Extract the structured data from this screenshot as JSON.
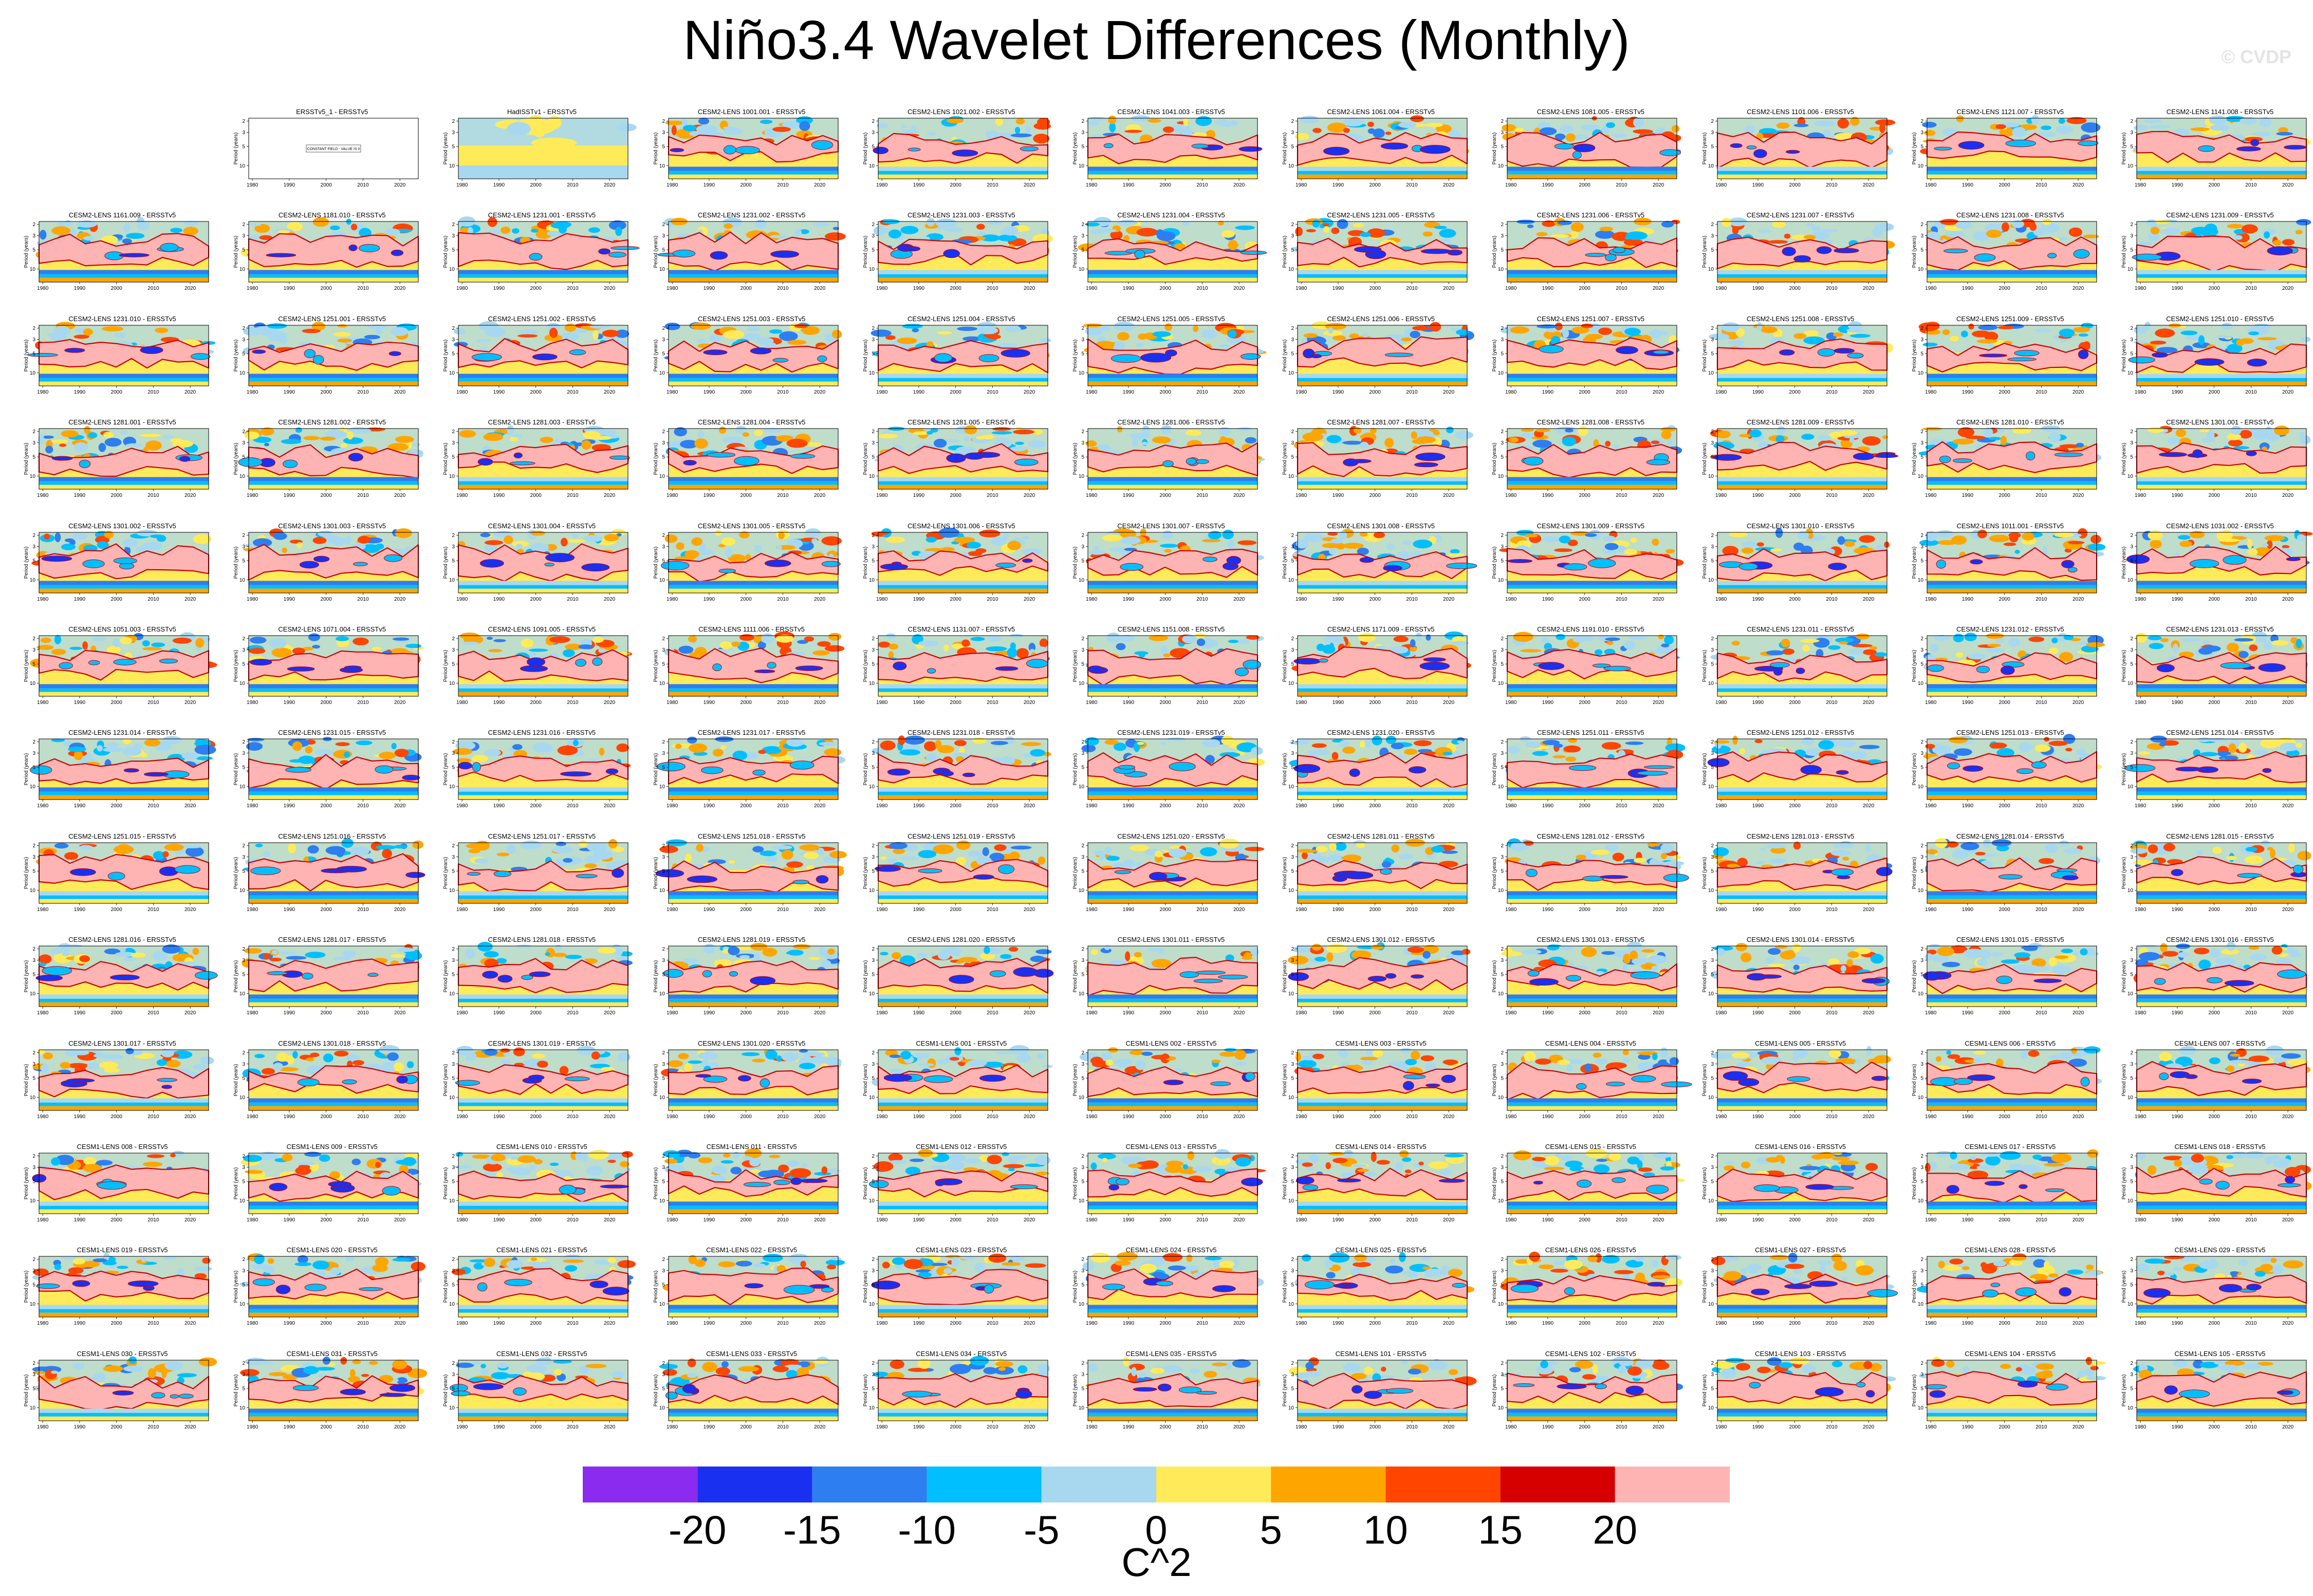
{
  "title": "Niño3.4 Wavelet Differences (Monthly)",
  "watermark": "© CVDP",
  "colors": {
    "levels": [
      "#8b2bf0",
      "#1a30f0",
      "#2d7ef0",
      "#00bfff",
      "#a8d8f0",
      "#ffeb5a",
      "#ffa500",
      "#ff4500",
      "#d70000",
      "#ffb4b4"
    ],
    "contour": "#cc0000",
    "background": "#ffffff"
  },
  "chart_data": {
    "type": "heatmap",
    "layout": "grid of wavelet power difference panels, 11 columns x 13 rows, first slot empty",
    "xlabel": "",
    "ylabel": "Period (years)",
    "x_ticks": [
      "1980",
      "1990",
      "2000",
      "2010",
      "2020"
    ],
    "x_range": [
      1979,
      2025
    ],
    "y_ticks": [
      "2",
      "3",
      "5",
      "10"
    ],
    "y_scale": "log, inverted",
    "colorbar": {
      "ticks": [
        "-20",
        "-15",
        "-10",
        "-5",
        "0",
        "5",
        "10",
        "15",
        "20"
      ],
      "levels": [
        -20,
        -15,
        -10,
        -5,
        0,
        5,
        10,
        15,
        20
      ],
      "units": "C^2",
      "placement": "bottom"
    },
    "constant_field_label": "CONSTANT FIELD - VALUE IS 0",
    "panels": [
      "ERSSTv5_1 - ERSSTv5",
      "HadISSTv1 - ERSSTv5",
      "CESM2-LENS 1001.001 - ERSSTv5",
      "CESM2-LENS 1021.002 - ERSSTv5",
      "CESM2-LENS 1041.003 - ERSSTv5",
      "CESM2-LENS 1061.004 - ERSSTv5",
      "CESM2-LENS 1081.005 - ERSSTv5",
      "CESM2-LENS 1101.006 - ERSSTv5",
      "CESM2-LENS 1121.007 - ERSSTv5",
      "CESM2-LENS 1141.008 - ERSSTv5",
      "CESM2-LENS 1161.009 - ERSSTv5",
      "CESM2-LENS 1181.010 - ERSSTv5",
      "CESM2-LENS 1231.001 - ERSSTv5",
      "CESM2-LENS 1231.002 - ERSSTv5",
      "CESM2-LENS 1231.003 - ERSSTv5",
      "CESM2-LENS 1231.004 - ERSSTv5",
      "CESM2-LENS 1231.005 - ERSSTv5",
      "CESM2-LENS 1231.006 - ERSSTv5",
      "CESM2-LENS 1231.007 - ERSSTv5",
      "CESM2-LENS 1231.008 - ERSSTv5",
      "CESM2-LENS 1231.009 - ERSSTv5",
      "CESM2-LENS 1231.010 - ERSSTv5",
      "CESM2-LENS 1251.001 - ERSSTv5",
      "CESM2-LENS 1251.002 - ERSSTv5",
      "CESM2-LENS 1251.003 - ERSSTv5",
      "CESM2-LENS 1251.004 - ERSSTv5",
      "CESM2-LENS 1251.005 - ERSSTv5",
      "CESM2-LENS 1251.006 - ERSSTv5",
      "CESM2-LENS 1251.007 - ERSSTv5",
      "CESM2-LENS 1251.008 - ERSSTv5",
      "CESM2-LENS 1251.009 - ERSSTv5",
      "CESM2-LENS 1251.010 - ERSSTv5",
      "CESM2-LENS 1281.001 - ERSSTv5",
      "CESM2-LENS 1281.002 - ERSSTv5",
      "CESM2-LENS 1281.003 - ERSSTv5",
      "CESM2-LENS 1281.004 - ERSSTv5",
      "CESM2-LENS 1281.005 - ERSSTv5",
      "CESM2-LENS 1281.006 - ERSSTv5",
      "CESM2-LENS 1281.007 - ERSSTv5",
      "CESM2-LENS 1281.008 - ERSSTv5",
      "CESM2-LENS 1281.009 - ERSSTv5",
      "CESM2-LENS 1281.010 - ERSSTv5",
      "CESM2-LENS 1301.001 - ERSSTv5",
      "CESM2-LENS 1301.002 - ERSSTv5",
      "CESM2-LENS 1301.003 - ERSSTv5",
      "CESM2-LENS 1301.004 - ERSSTv5",
      "CESM2-LENS 1301.005 - ERSSTv5",
      "CESM2-LENS 1301.006 - ERSSTv5",
      "CESM2-LENS 1301.007 - ERSSTv5",
      "CESM2-LENS 1301.008 - ERSSTv5",
      "CESM2-LENS 1301.009 - ERSSTv5",
      "CESM2-LENS 1301.010 - ERSSTv5",
      "CESM2-LENS 1011.001 - ERSSTv5",
      "CESM2-LENS 1031.002 - ERSSTv5",
      "CESM2-LENS 1051.003 - ERSSTv5",
      "CESM2-LENS 1071.004 - ERSSTv5",
      "CESM2-LENS 1091.005 - ERSSTv5",
      "CESM2-LENS 1111.006 - ERSSTv5",
      "CESM2-LENS 1131.007 - ERSSTv5",
      "CESM2-LENS 1151.008 - ERSSTv5",
      "CESM2-LENS 1171.009 - ERSSTv5",
      "CESM2-LENS 1191.010 - ERSSTv5",
      "CESM2-LENS 1231.011 - ERSSTv5",
      "CESM2-LENS 1231.012 - ERSSTv5",
      "CESM2-LENS 1231.013 - ERSSTv5",
      "CESM2-LENS 1231.014 - ERSSTv5",
      "CESM2-LENS 1231.015 - ERSSTv5",
      "CESM2-LENS 1231.016 - ERSSTv5",
      "CESM2-LENS 1231.017 - ERSSTv5",
      "CESM2-LENS 1231.018 - ERSSTv5",
      "CESM2-LENS 1231.019 - ERSSTv5",
      "CESM2-LENS 1231.020 - ERSSTv5",
      "CESM2-LENS 1251.011 - ERSSTv5",
      "CESM2-LENS 1251.012 - ERSSTv5",
      "CESM2-LENS 1251.013 - ERSSTv5",
      "CESM2-LENS 1251.014 - ERSSTv5",
      "CESM2-LENS 1251.015 - ERSSTv5",
      "CESM2-LENS 1251.016 - ERSSTv5",
      "CESM2-LENS 1251.017 - ERSSTv5",
      "CESM2-LENS 1251.018 - ERSSTv5",
      "CESM2-LENS 1251.019 - ERSSTv5",
      "CESM2-LENS 1251.020 - ERSSTv5",
      "CESM2-LENS 1281.011 - ERSSTv5",
      "CESM2-LENS 1281.012 - ERSSTv5",
      "CESM2-LENS 1281.013 - ERSSTv5",
      "CESM2-LENS 1281.014 - ERSSTv5",
      "CESM2-LENS 1281.015 - ERSSTv5",
      "CESM2-LENS 1281.016 - ERSSTv5",
      "CESM2-LENS 1281.017 - ERSSTv5",
      "CESM2-LENS 1281.018 - ERSSTv5",
      "CESM2-LENS 1281.019 - ERSSTv5",
      "CESM2-LENS 1281.020 - ERSSTv5",
      "CESM2-LENS 1301.011 - ERSSTv5",
      "CESM2-LENS 1301.012 - ERSSTv5",
      "CESM2-LENS 1301.013 - ERSSTv5",
      "CESM2-LENS 1301.014 - ERSSTv5",
      "CESM2-LENS 1301.015 - ERSSTv5",
      "CESM2-LENS 1301.016 - ERSSTv5",
      "CESM2-LENS 1301.017 - ERSSTv5",
      "CESM2-LENS 1301.018 - ERSSTv5",
      "CESM2-LENS 1301.019 - ERSSTv5",
      "CESM2-LENS 1301.020 - ERSSTv5",
      "CESM1-LENS 001 - ERSSTv5",
      "CESM1-LENS 002 - ERSSTv5",
      "CESM1-LENS 003 - ERSSTv5",
      "CESM1-LENS 004 - ERSSTv5",
      "CESM1-LENS 005 - ERSSTv5",
      "CESM1-LENS 006 - ERSSTv5",
      "CESM1-LENS 007 - ERSSTv5",
      "CESM1-LENS 008 - ERSSTv5",
      "CESM1-LENS 009 - ERSSTv5",
      "CESM1-LENS 010 - ERSSTv5",
      "CESM1-LENS 011 - ERSSTv5",
      "CESM1-LENS 012 - ERSSTv5",
      "CESM1-LENS 013 - ERSSTv5",
      "CESM1-LENS 014 - ERSSTv5",
      "CESM1-LENS 015 - ERSSTv5",
      "CESM1-LENS 016 - ERSSTv5",
      "CESM1-LENS 017 - ERSSTv5",
      "CESM1-LENS 018 - ERSSTv5",
      "CESM1-LENS 019 - ERSSTv5",
      "CESM1-LENS 020 - ERSSTv5",
      "CESM1-LENS 021 - ERSSTv5",
      "CESM1-LENS 022 - ERSSTv5",
      "CESM1-LENS 023 - ERSSTv5",
      "CESM1-LENS 024 - ERSSTv5",
      "CESM1-LENS 025 - ERSSTv5",
      "CESM1-LENS 026 - ERSSTv5",
      "CESM1-LENS 027 - ERSSTv5",
      "CESM1-LENS 028 - ERSSTv5",
      "CESM1-LENS 029 - ERSSTv5",
      "CESM1-LENS 030 - ERSSTv5",
      "CESM1-LENS 031 - ERSSTv5",
      "CESM1-LENS 032 - ERSSTv5",
      "CESM1-LENS 033 - ERSSTv5",
      "CESM1-LENS 034 - ERSSTv5",
      "CESM1-LENS 035 - ERSSTv5",
      "CESM1-LENS 101 - ERSSTv5",
      "CESM1-LENS 102 - ERSSTv5",
      "CESM1-LENS 103 - ERSSTv5",
      "CESM1-LENS 104 - ERSSTv5",
      "CESM1-LENS 105 - ERSSTv5"
    ]
  }
}
